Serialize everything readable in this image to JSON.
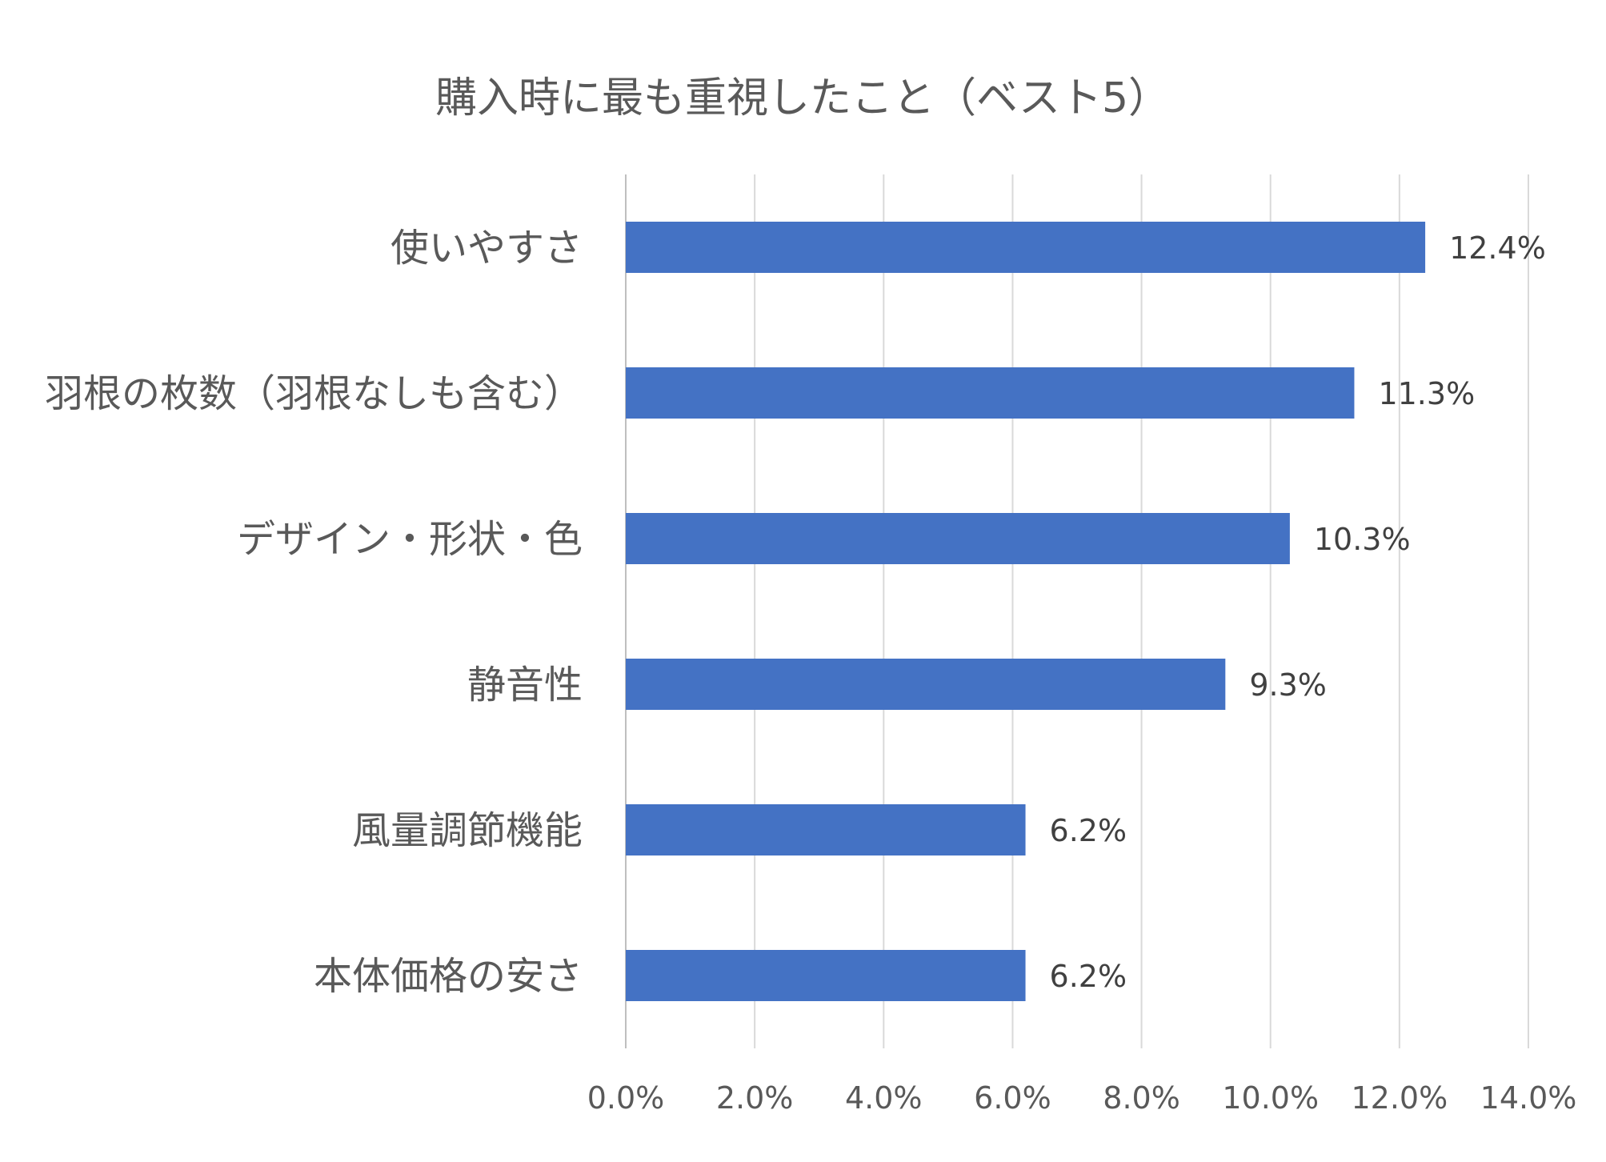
{
  "chart_data": {
    "type": "bar",
    "orientation": "horizontal",
    "title": "購入時に最も重視したこと（ベスト5）",
    "categories": [
      "使いやすさ",
      "羽根の枚数（羽根なしも含む）",
      "デザイン・形状・色",
      "静音性",
      "風量調節機能",
      "本体価格の安さ"
    ],
    "values": [
      12.4,
      11.3,
      10.3,
      9.3,
      6.2,
      6.2
    ],
    "value_labels": [
      "12.4%",
      "11.3%",
      "10.3%",
      "9.3%",
      "6.2%",
      "6.2%"
    ],
    "x_ticks": [
      "0.0%",
      "2.0%",
      "4.0%",
      "6.0%",
      "8.0%",
      "10.0%",
      "12.0%",
      "14.0%"
    ],
    "xlim": [
      0,
      14
    ],
    "bar_color": "#4472c4",
    "grid": true,
    "legend": "none"
  }
}
